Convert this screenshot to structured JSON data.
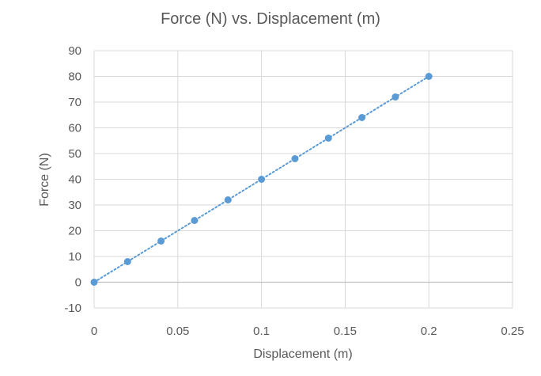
{
  "chart_data": {
    "type": "scatter",
    "title": "Force (N) vs. Displacement (m)",
    "xlabel": "Displacement (m)",
    "ylabel": "Force (N)",
    "xlim": [
      0,
      0.25
    ],
    "ylim": [
      -10,
      90
    ],
    "x_ticks": [
      0,
      0.05,
      0.1,
      0.15,
      0.2,
      0.25
    ],
    "x_tick_labels": [
      "0",
      "0.05",
      "0.1",
      "0.15",
      "0.2",
      "0.25"
    ],
    "y_ticks": [
      -10,
      0,
      10,
      20,
      30,
      40,
      50,
      60,
      70,
      80,
      90
    ],
    "y_tick_labels": [
      "-10",
      "0",
      "10",
      "20",
      "30",
      "40",
      "50",
      "60",
      "70",
      "80",
      "90"
    ],
    "grid": true,
    "legend": "none",
    "series": [
      {
        "x": [
          0,
          0.02,
          0.04,
          0.06,
          0.08,
          0.1,
          0.12,
          0.14,
          0.16,
          0.18,
          0.2
        ],
        "y": [
          0,
          8,
          16,
          24,
          32,
          40,
          48,
          56,
          64,
          72,
          80
        ],
        "color": "#5b9bd5",
        "trendline": "linear-dotted"
      }
    ]
  },
  "colors": {
    "text": "#595959",
    "grid": "#d9d9d9",
    "marker": "#5b9bd5"
  }
}
